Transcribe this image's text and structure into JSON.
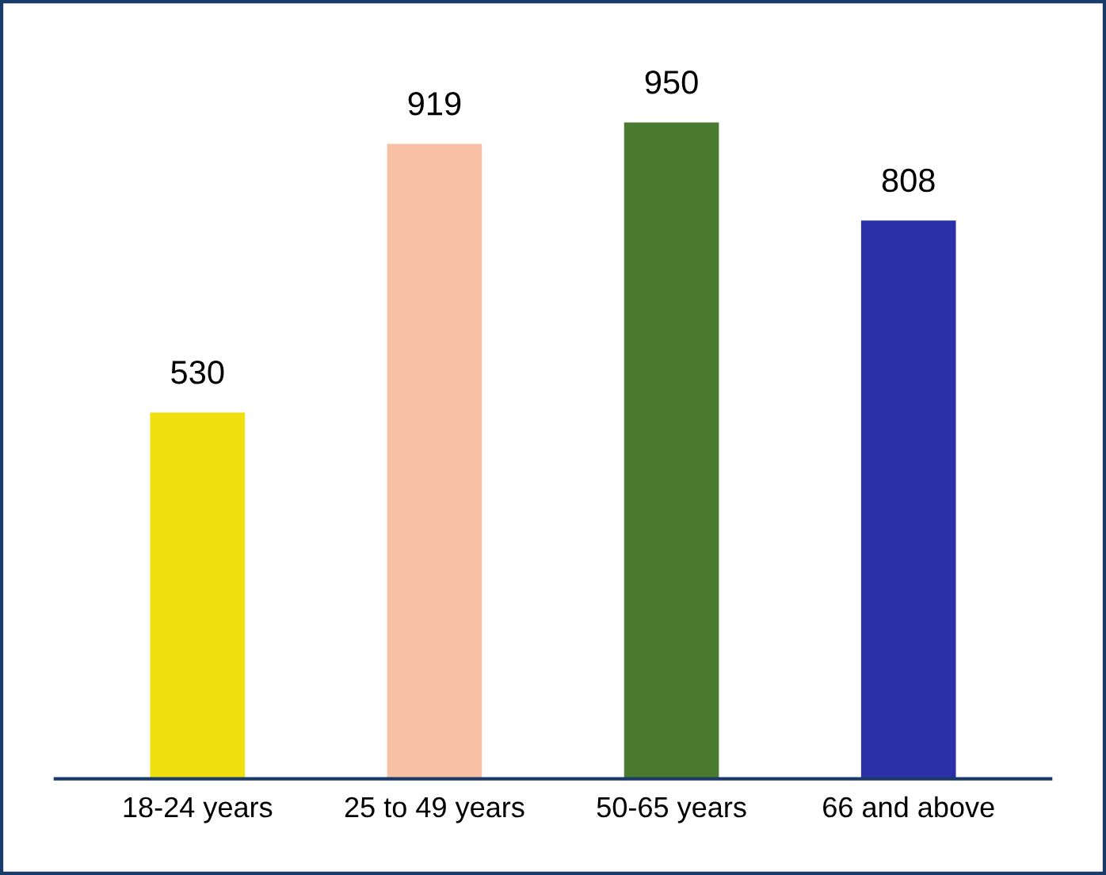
{
  "chart_data": {
    "type": "bar",
    "categories": [
      "18-24 years",
      "25 to 49 years",
      "50-65 years",
      "66 and above"
    ],
    "values": [
      530,
      919,
      950,
      808
    ],
    "colors": [
      "#f0e010",
      "#f8c0a4",
      "#4a7a30",
      "#2a30a8"
    ],
    "data_labels": true,
    "grid": false,
    "legend": false
  }
}
